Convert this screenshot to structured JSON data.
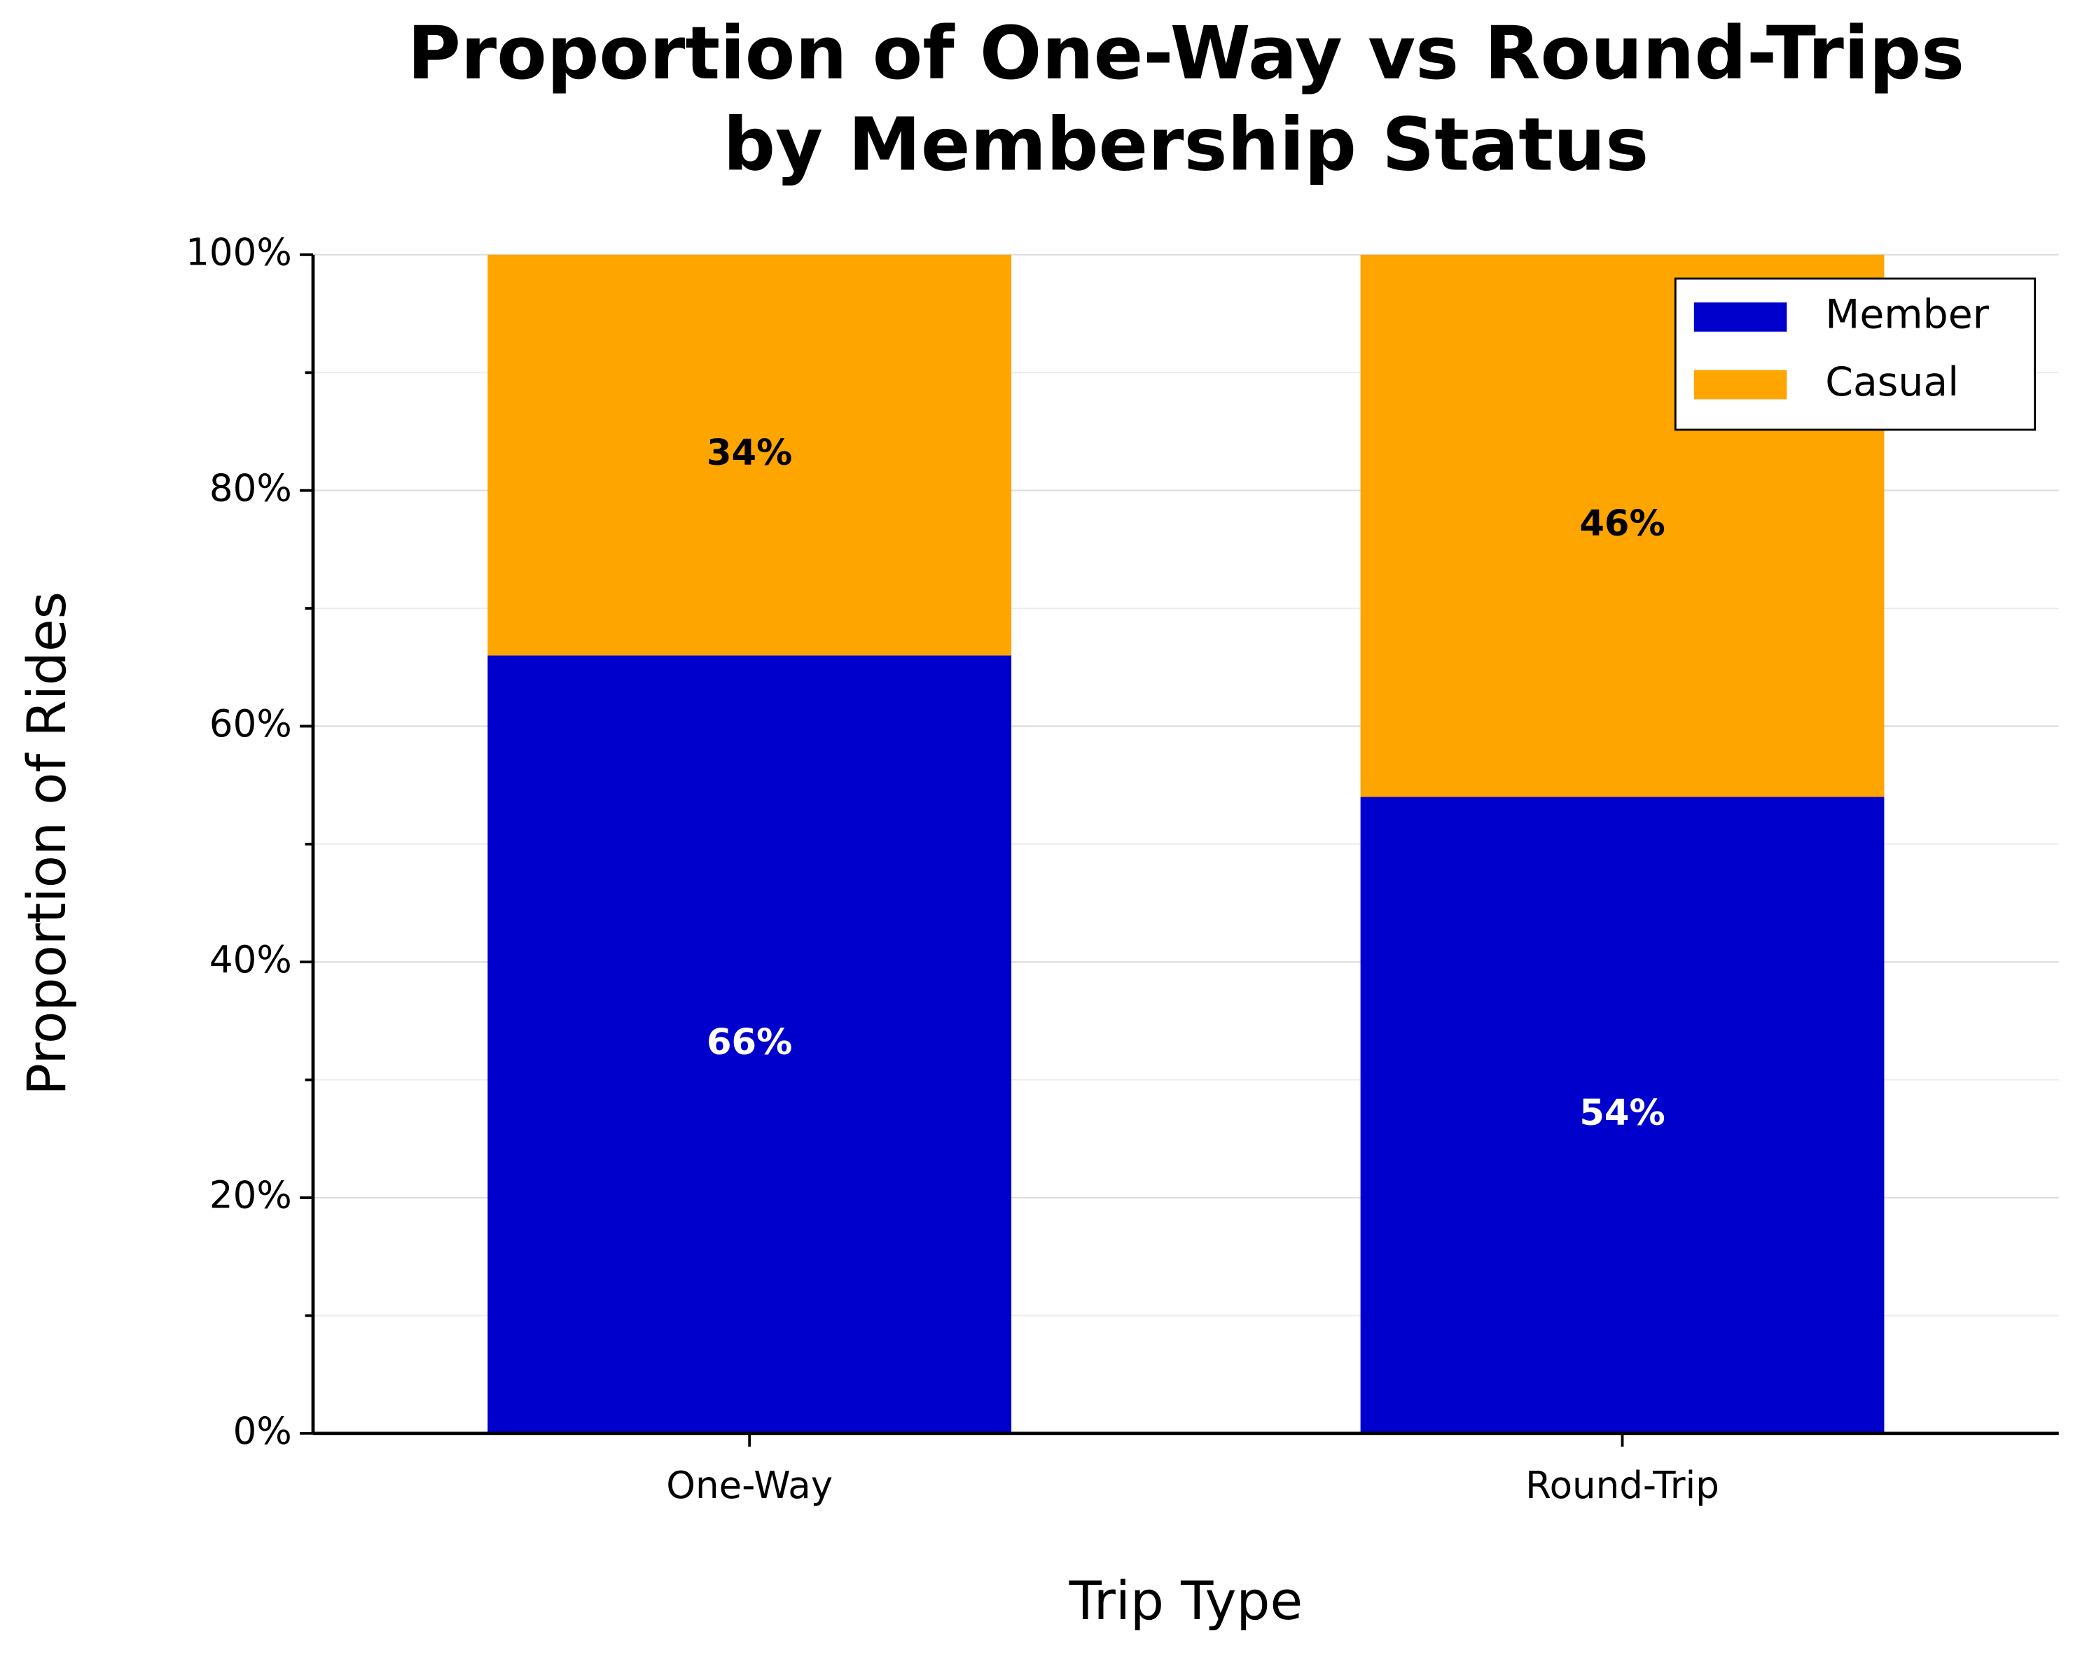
{
  "chart_data": {
    "type": "stacked_bar",
    "title": [
      "Proportion of One-Way vs Round-Trips",
      "by Membership Status"
    ],
    "x_label": "Trip Type",
    "y_label": "Proportion of Rides",
    "categories": [
      "One-Way",
      "Round-Trip"
    ],
    "series": [
      {
        "name": "Member",
        "color": "#0000cc",
        "values": [
          66,
          54
        ],
        "value_labels": [
          "66%",
          "54%"
        ],
        "label_color": "#ffffff"
      },
      {
        "name": "Casual",
        "color": "#ffa500",
        "values": [
          34,
          46
        ],
        "value_labels": [
          "34%",
          "46%"
        ],
        "label_color": "#000000"
      }
    ],
    "ylim": [
      0,
      100
    ],
    "yticks": [
      {
        "value": 0,
        "label": "0%"
      },
      {
        "value": 20,
        "label": "20%"
      },
      {
        "value": 40,
        "label": "40%"
      },
      {
        "value": 60,
        "label": "60%"
      },
      {
        "value": 80,
        "label": "80%"
      },
      {
        "value": 100,
        "label": "100%"
      }
    ],
    "yminorticks": [
      10,
      30,
      50,
      70,
      90
    ],
    "grid": true,
    "legend": "upper right"
  }
}
